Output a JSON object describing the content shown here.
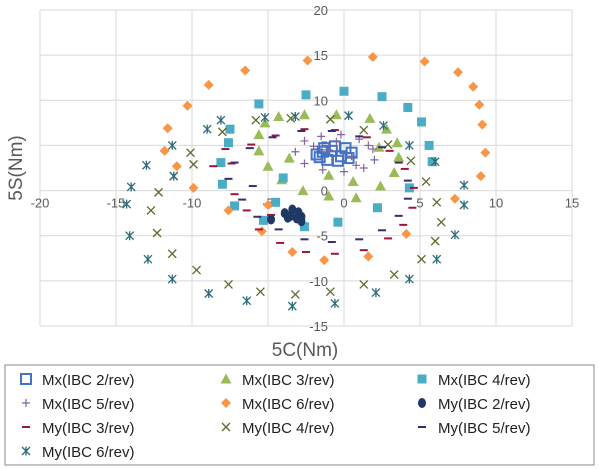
{
  "chart_data": {
    "type": "scatter",
    "xlabel": "5C(Nm)",
    "ylabel": "5S(Nm)",
    "xlim": [
      -20,
      15
    ],
    "ylim": [
      -15,
      20
    ],
    "x_ticks": [
      "-20",
      "-15",
      "-10",
      "-5",
      "0",
      "5",
      "10",
      "15"
    ],
    "y_ticks": [
      "20",
      "15",
      "10",
      "5",
      "0",
      "-5",
      "-10",
      "-15"
    ],
    "grid": true,
    "legend_position": "bottom",
    "series": [
      {
        "name": "Mx(IBC 2/rev)",
        "marker": "square-open",
        "color": "#4472C4",
        "points": [
          [
            -1.8,
            4.0
          ],
          [
            -1.3,
            4.7
          ],
          [
            -0.6,
            4.9
          ],
          [
            0.1,
            4.7
          ],
          [
            0.5,
            4.2
          ],
          [
            0.3,
            3.6
          ],
          [
            -0.4,
            3.3
          ],
          [
            -1.1,
            3.4
          ],
          [
            -1.6,
            3.7
          ],
          [
            -0.8,
            4.4
          ],
          [
            -0.2,
            3.8
          ],
          [
            -1.4,
            4.3
          ]
        ]
      },
      {
        "name": "Mx(IBC 3/rev)",
        "marker": "triangle",
        "color": "#9BBB59",
        "points": [
          [
            -2.6,
            8.4
          ],
          [
            -0.5,
            8.4
          ],
          [
            1.7,
            8.0
          ],
          [
            2.8,
            6.8
          ],
          [
            3.5,
            5.3
          ],
          [
            3.6,
            3.7
          ],
          [
            3.3,
            2.0
          ],
          [
            2.4,
            0.5
          ],
          [
            0.8,
            -0.8
          ],
          [
            -1.0,
            -0.6
          ],
          [
            -2.7,
            0.0
          ],
          [
            -4.1,
            1.2
          ],
          [
            -5.0,
            2.7
          ],
          [
            -5.6,
            4.4
          ],
          [
            -5.6,
            6.2
          ],
          [
            -5.2,
            7.5
          ],
          [
            -4.3,
            8.2
          ],
          [
            0.6,
            1.0
          ],
          [
            -3.6,
            3.6
          ],
          [
            2.3,
            4.8
          ],
          [
            -1.0,
            1.7
          ]
        ]
      },
      {
        "name": "Mx(IBC 4/rev)",
        "marker": "square",
        "color": "#4BACC6",
        "points": [
          [
            -2.5,
            10.6
          ],
          [
            0.0,
            11.0
          ],
          [
            2.5,
            10.4
          ],
          [
            4.2,
            9.2
          ],
          [
            5.1,
            7.6
          ],
          [
            5.6,
            5.0
          ],
          [
            5.8,
            3.2
          ],
          [
            4.3,
            0.3
          ],
          [
            2.2,
            -1.9
          ],
          [
            -0.4,
            -3.5
          ],
          [
            -2.6,
            -4.0
          ],
          [
            -5.3,
            -3.3
          ],
          [
            -7.2,
            -1.7
          ],
          [
            -8.0,
            0.7
          ],
          [
            -8.1,
            3.1
          ],
          [
            -7.6,
            5.3
          ],
          [
            -7.5,
            6.8
          ],
          [
            -5.6,
            9.6
          ],
          [
            -4.5,
            -1.3
          ],
          [
            -4.0,
            1.4
          ]
        ]
      },
      {
        "name": "Mx(IBC 5/rev)",
        "marker": "plus",
        "color": "#8064A2",
        "points": [
          [
            -3.2,
            4.3
          ],
          [
            -2.6,
            5.5
          ],
          [
            -1.5,
            6.0
          ],
          [
            -0.2,
            6.2
          ],
          [
            1.0,
            5.7
          ],
          [
            1.9,
            4.6
          ],
          [
            2.0,
            3.4
          ],
          [
            1.3,
            2.5
          ],
          [
            0.0,
            2.1
          ],
          [
            -1.4,
            2.3
          ],
          [
            -2.6,
            3.0
          ],
          [
            -1.0,
            4.5
          ],
          [
            0.5,
            3.8
          ],
          [
            -2.0,
            4.9
          ],
          [
            1.6,
            5.0
          ],
          [
            0.8,
            2.8
          ],
          [
            -0.5,
            5.4
          ]
        ]
      },
      {
        "name": "Mx(IBC 6/rev)",
        "marker": "diamond",
        "color": "#F79646",
        "points": [
          [
            -6.5,
            13.3
          ],
          [
            -2.4,
            14.4
          ],
          [
            1.9,
            14.8
          ],
          [
            5.3,
            14.3
          ],
          [
            7.5,
            13.1
          ],
          [
            8.5,
            11.5
          ],
          [
            8.9,
            9.5
          ],
          [
            9.1,
            7.3
          ],
          [
            9.3,
            4.2
          ],
          [
            9.0,
            1.6
          ],
          [
            7.3,
            -0.9
          ],
          [
            4.1,
            -4.8
          ],
          [
            1.6,
            -7.3
          ],
          [
            -1.3,
            -7.7
          ],
          [
            -3.4,
            -6.8
          ],
          [
            -5.4,
            -4.5
          ],
          [
            -7.6,
            -2.2
          ],
          [
            -9.9,
            0.3
          ],
          [
            -11.0,
            2.7
          ],
          [
            -11.8,
            4.4
          ],
          [
            -11.6,
            6.9
          ],
          [
            -10.3,
            9.4
          ],
          [
            -8.9,
            11.7
          ],
          [
            -5.0,
            -1.6
          ]
        ]
      },
      {
        "name": "My(IBC 2/rev)",
        "marker": "circle",
        "color": "#1F3864",
        "points": [
          [
            -3.9,
            -2.5
          ],
          [
            -3.5,
            -2.8
          ],
          [
            -3.1,
            -3.1
          ],
          [
            -2.8,
            -3.4
          ],
          [
            -3.4,
            -2.1
          ],
          [
            -3.0,
            -2.4
          ],
          [
            -2.8,
            -2.9
          ],
          [
            -3.7,
            -3.0
          ],
          [
            -4.8,
            -3.2
          ]
        ]
      },
      {
        "name": "My(IBC 3/rev)",
        "marker": "dash",
        "color": "#A0143C",
        "points": [
          [
            -8.6,
            2.7
          ],
          [
            -7.8,
            4.6
          ],
          [
            -7.2,
            -0.4
          ],
          [
            -6.4,
            -2.2
          ],
          [
            -5.6,
            -4.3
          ],
          [
            -4.2,
            -5.8
          ],
          [
            -2.5,
            -6.8
          ],
          [
            -0.6,
            -7.0
          ],
          [
            1.3,
            -6.6
          ],
          [
            2.9,
            -5.3
          ],
          [
            3.9,
            -3.8
          ],
          [
            4.5,
            -1.9
          ],
          [
            4.6,
            0.3
          ],
          [
            4.0,
            2.4
          ],
          [
            3.0,
            4.4
          ],
          [
            1.5,
            5.9
          ],
          [
            -0.6,
            6.7
          ],
          [
            -2.6,
            6.8
          ],
          [
            -4.5,
            6.1
          ],
          [
            -6.1,
            5.1
          ],
          [
            -7.4,
            3.0
          ],
          [
            -4.8,
            -2.7
          ]
        ]
      },
      {
        "name": "My(IBC 4/rev)",
        "marker": "x",
        "color": "#5B6B2A",
        "points": [
          [
            -10.1,
            4.2
          ],
          [
            -11.2,
            1.6
          ],
          [
            -12.2,
            -0.2
          ],
          [
            -12.7,
            -2.2
          ],
          [
            -12.3,
            -4.7
          ],
          [
            -11.3,
            -7.0
          ],
          [
            -9.7,
            -8.8
          ],
          [
            -7.6,
            -10.4
          ],
          [
            -5.5,
            -11.2
          ],
          [
            -3.2,
            -11.5
          ],
          [
            -0.9,
            -11.2
          ],
          [
            1.3,
            -10.4
          ],
          [
            3.3,
            -9.3
          ],
          [
            5.1,
            -7.6
          ],
          [
            6.0,
            -5.6
          ],
          [
            6.4,
            -3.5
          ],
          [
            6.1,
            -1.3
          ],
          [
            5.4,
            1.0
          ],
          [
            4.4,
            3.3
          ],
          [
            2.9,
            5.1
          ],
          [
            1.3,
            6.7
          ],
          [
            -0.9,
            7.9
          ],
          [
            -3.5,
            8.0
          ],
          [
            -5.8,
            7.8
          ],
          [
            -8.0,
            6.5
          ],
          [
            -9.9,
            2.9
          ]
        ]
      },
      {
        "name": "My(IBC 5/rev)",
        "marker": "dash",
        "color": "#3A2B6E",
        "points": [
          [
            -7.6,
            1.3
          ],
          [
            -6.7,
            -1.0
          ],
          [
            -5.7,
            -2.9
          ],
          [
            -4.3,
            -4.3
          ],
          [
            -2.6,
            -5.4
          ],
          [
            -0.8,
            -5.7
          ],
          [
            1.0,
            -5.4
          ],
          [
            2.5,
            -4.4
          ],
          [
            3.6,
            -2.8
          ],
          [
            4.2,
            -0.9
          ],
          [
            4.2,
            1.1
          ],
          [
            3.6,
            3.1
          ],
          [
            2.5,
            4.8
          ],
          [
            1.0,
            6.0
          ],
          [
            -0.8,
            6.6
          ],
          [
            -2.8,
            6.6
          ],
          [
            -4.7,
            5.9
          ],
          [
            -6.2,
            4.7
          ],
          [
            -7.2,
            3.1
          ],
          [
            -6.0,
            0.5
          ]
        ]
      },
      {
        "name": "My(IBC 6/rev)",
        "marker": "asterisk",
        "color": "#2E6B7A",
        "points": [
          [
            -8.1,
            7.8
          ],
          [
            -9.0,
            6.8
          ],
          [
            -11.3,
            5.0
          ],
          [
            -13.0,
            2.8
          ],
          [
            -14.0,
            0.4
          ],
          [
            -14.3,
            -1.5
          ],
          [
            -14.1,
            -5.0
          ],
          [
            -12.9,
            -7.6
          ],
          [
            -11.3,
            -9.8
          ],
          [
            -8.9,
            -11.4
          ],
          [
            -6.4,
            -12.2
          ],
          [
            -3.4,
            -12.8
          ],
          [
            -0.6,
            -12.5
          ],
          [
            2.1,
            -11.3
          ],
          [
            4.3,
            -9.8
          ],
          [
            6.1,
            -7.6
          ],
          [
            7.3,
            -4.9
          ],
          [
            7.9,
            -1.6
          ],
          [
            7.9,
            0.6
          ],
          [
            6.0,
            3.2
          ],
          [
            4.3,
            5.0
          ],
          [
            2.6,
            7.2
          ],
          [
            0.3,
            8.3
          ],
          [
            -3.2,
            8.2
          ],
          [
            -5.2,
            8.1
          ],
          [
            -11.2,
            1.6
          ]
        ]
      }
    ]
  }
}
